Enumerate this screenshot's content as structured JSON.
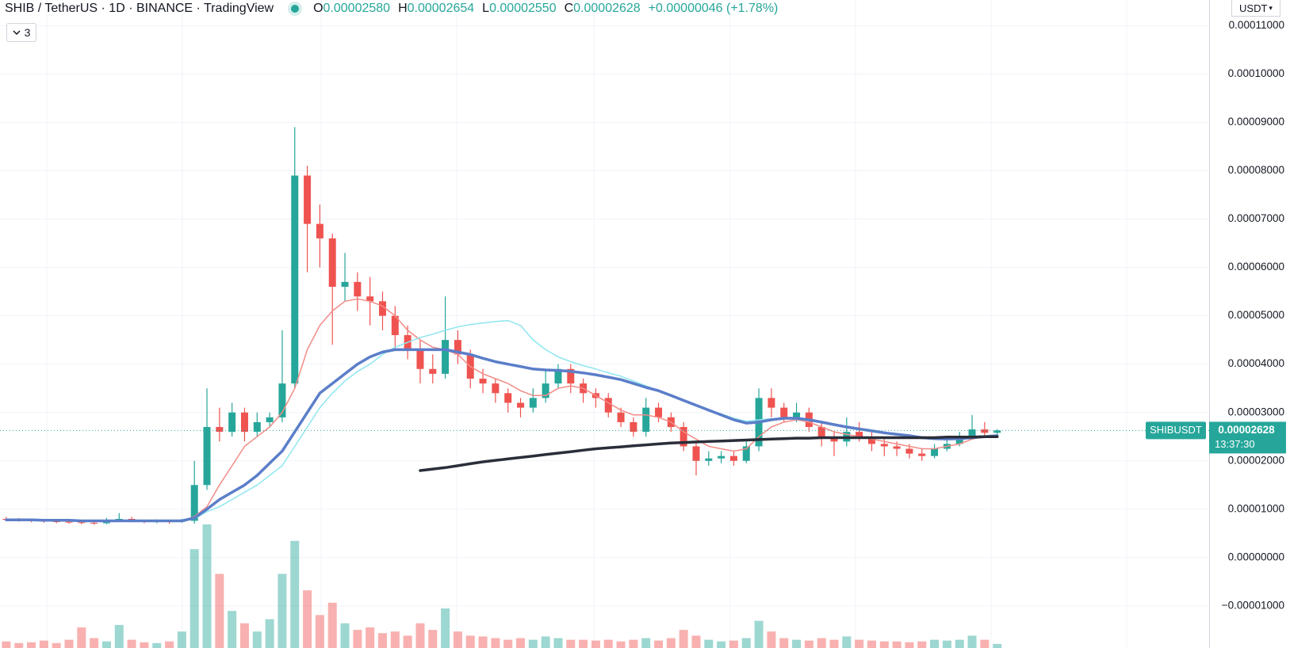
{
  "chart_data": {
    "type": "candlestick",
    "title": "SHIB / TetherUS · 1D · BINANCE · TradingView",
    "legend_values": [
      {
        "label": "O",
        "value": "0.00002580"
      },
      {
        "label": "H",
        "value": "0.00002654"
      },
      {
        "label": "L",
        "value": "0.00002550"
      },
      {
        "label": "C",
        "value": "0.00002628"
      }
    ],
    "change": "+0.00000046 (+1.78%)",
    "indicator_count": "3",
    "currency": "USDT",
    "symbol": "SHIBUSDT",
    "last_price": "0.00002628",
    "countdown": "13:37:30",
    "up_color": "#26a69a",
    "down_color": "#ef5350",
    "grid": true,
    "ylim": [
      -1.87e-05,
      0.0001153
    ],
    "yticks": [
      {
        "value": 0.00011,
        "label": "0.00011000"
      },
      {
        "value": 0.0001,
        "label": "0.00010000"
      },
      {
        "value": 9e-05,
        "label": "0.00009000"
      },
      {
        "value": 8e-05,
        "label": "0.00008000"
      },
      {
        "value": 7e-05,
        "label": "0.00007000"
      },
      {
        "value": 6e-05,
        "label": "0.00006000"
      },
      {
        "value": 5e-05,
        "label": "0.00005000"
      },
      {
        "value": 4e-05,
        "label": "0.00004000"
      },
      {
        "value": 3e-05,
        "label": "0.00003000"
      },
      {
        "value": 2e-05,
        "label": "0.00002000"
      },
      {
        "value": 1e-05,
        "label": "0.00001000"
      },
      {
        "value": 0,
        "label": "0.00000000"
      },
      {
        "value": -1e-05,
        "label": "−0.00001000"
      }
    ],
    "open": [
      8e-06,
      7.8e-06,
      7.7e-06,
      7.6e-06,
      7.5e-06,
      7.4e-06,
      7.3e-06,
      7.2e-06,
      7.1e-06,
      7.6e-06,
      8e-06,
      7.7e-06,
      7.4e-06,
      7.5e-06,
      7.4e-06,
      7.6e-06,
      1.5e-05,
      2.7e-05,
      2.6e-05,
      3e-05,
      2.6e-05,
      2.8e-05,
      2.9e-05,
      3.6e-05,
      7.9e-05,
      6.9e-05,
      6.6e-05,
      5.6e-05,
      5.7e-05,
      5.4e-05,
      5.3e-05,
      5e-05,
      4.6e-05,
      4.3e-05,
      3.9e-05,
      3.8e-05,
      4.5e-05,
      4.2e-05,
      3.7e-05,
      3.6e-05,
      3.4e-05,
      3.2e-05,
      3.1e-05,
      3.3e-05,
      3.6e-05,
      3.9e-05,
      3.6e-05,
      3.4e-05,
      3.3e-05,
      3e-05,
      2.8e-05,
      2.6e-05,
      3.1e-05,
      2.9e-05,
      2.7e-05,
      2.3e-05,
      2e-05,
      2.05e-05,
      2.1e-05,
      2e-05,
      2.3e-05,
      3.3e-05,
      3.1e-05,
      2.9e-05,
      3e-05,
      2.7e-05,
      2.5e-05,
      2.4e-05,
      2.6e-05,
      2.5e-05,
      2.35e-05,
      2.3e-05,
      2.25e-05,
      2.15e-05,
      2.1e-05,
      2.25e-05,
      2.35e-05,
      2.5e-05,
      2.65e-05,
      2.58e-05
    ],
    "high": [
      8.4e-06,
      8.2e-06,
      8.1e-06,
      8e-06,
      7.9e-06,
      7.8e-06,
      7.7e-06,
      7.6e-06,
      8.2e-06,
      9.2e-06,
      8.4e-06,
      7.9e-06,
      7.9e-06,
      7.8e-06,
      8e-06,
      2e-05,
      3.5e-05,
      3.1e-05,
      3.2e-05,
      3.1e-05,
      3e-05,
      3e-05,
      4.7e-05,
      8.9e-05,
      8.1e-05,
      7.3e-05,
      6.7e-05,
      6.3e-05,
      5.9e-05,
      5.8e-05,
      5.5e-05,
      5.2e-05,
      4.8e-05,
      4.5e-05,
      4.2e-05,
      5.4e-05,
      4.7e-05,
      4.3e-05,
      3.9e-05,
      3.7e-05,
      3.5e-05,
      3.3e-05,
      3.5e-05,
      3.9e-05,
      4e-05,
      4e-05,
      3.7e-05,
      3.5e-05,
      3.4e-05,
      3.1e-05,
      2.9e-05,
      3.3e-05,
      3.2e-05,
      3e-05,
      2.8e-05,
      2.4e-05,
      2.2e-05,
      2.2e-05,
      2.2e-05,
      2.4e-05,
      3.5e-05,
      3.5e-05,
      3.2e-05,
      3.2e-05,
      3.1e-05,
      2.8e-05,
      2.6e-05,
      2.9e-05,
      2.8e-05,
      2.6e-05,
      2.45e-05,
      2.4e-05,
      2.35e-05,
      2.25e-05,
      2.35e-05,
      2.5e-05,
      2.6e-05,
      2.95e-05,
      2.8e-05,
      2.654e-05
    ],
    "low": [
      7.5e-06,
      7.4e-06,
      7.3e-06,
      7.2e-06,
      7.1e-06,
      7e-06,
      6.9e-06,
      6.8e-06,
      6.9e-06,
      7.4e-06,
      7.4e-06,
      7.1e-06,
      7.1e-06,
      7e-06,
      7.2e-06,
      7e-06,
      1.4e-05,
      2.4e-05,
      2.5e-05,
      2.4e-05,
      2.5e-05,
      2.7e-05,
      2.8e-05,
      3.5e-05,
      5.9e-05,
      6e-05,
      4.4e-05,
      5.3e-05,
      5.1e-05,
      4.8e-05,
      4.7e-05,
      4.3e-05,
      4.1e-05,
      3.6e-05,
      3.6e-05,
      3.7e-05,
      4e-05,
      3.5e-05,
      3.4e-05,
      3.2e-05,
      3e-05,
      2.9e-05,
      3e-05,
      3.2e-05,
      3.5e-05,
      3.4e-05,
      3.2e-05,
      3.1e-05,
      2.9e-05,
      2.7e-05,
      2.5e-05,
      2.5e-05,
      2.8e-05,
      2.6e-05,
      2.2e-05,
      1.7e-05,
      1.9e-05,
      1.95e-05,
      1.9e-05,
      1.95e-05,
      2.2e-05,
      2.9e-05,
      2.8e-05,
      2.8e-05,
      2.6e-05,
      2.3e-05,
      2.1e-05,
      2.3e-05,
      2.4e-05,
      2.2e-05,
      2.1e-05,
      2.1e-05,
      2.05e-05,
      2e-05,
      2.05e-05,
      2.2e-05,
      2.3e-05,
      2.45e-05,
      2.5e-05,
      2.55e-05
    ],
    "close": [
      7.8e-06,
      7.7e-06,
      7.6e-06,
      7.5e-06,
      7.4e-06,
      7.3e-06,
      7.2e-06,
      7.1e-06,
      7.6e-06,
      8e-06,
      7.7e-06,
      7.4e-06,
      7.5e-06,
      7.4e-06,
      7.6e-06,
      1.5e-05,
      2.7e-05,
      2.6e-05,
      3e-05,
      2.6e-05,
      2.8e-05,
      2.9e-05,
      3.6e-05,
      7.9e-05,
      6.9e-05,
      6.6e-05,
      5.6e-05,
      5.7e-05,
      5.4e-05,
      5.3e-05,
      5e-05,
      4.6e-05,
      4.3e-05,
      3.9e-05,
      3.8e-05,
      4.5e-05,
      4.2e-05,
      3.7e-05,
      3.6e-05,
      3.4e-05,
      3.2e-05,
      3.1e-05,
      3.3e-05,
      3.6e-05,
      3.9e-05,
      3.6e-05,
      3.4e-05,
      3.3e-05,
      3e-05,
      2.8e-05,
      2.6e-05,
      3.1e-05,
      2.9e-05,
      2.7e-05,
      2.3e-05,
      2e-05,
      2.05e-05,
      2.1e-05,
      2e-05,
      2.3e-05,
      3.3e-05,
      3.1e-05,
      2.9e-05,
      3e-05,
      2.7e-05,
      2.5e-05,
      2.4e-05,
      2.6e-05,
      2.5e-05,
      2.35e-05,
      2.3e-05,
      2.25e-05,
      2.15e-05,
      2.1e-05,
      2.25e-05,
      2.35e-05,
      2.5e-05,
      2.65e-05,
      2.58e-05,
      2.628e-05
    ],
    "volume": [
      8,
      6,
      7,
      9,
      6,
      10,
      25,
      12,
      8,
      28,
      10,
      7,
      6,
      8,
      20,
      120,
      150,
      90,
      45,
      30,
      20,
      35,
      90,
      130,
      70,
      40,
      55,
      30,
      22,
      25,
      18,
      20,
      15,
      30,
      22,
      48,
      20,
      15,
      14,
      12,
      10,
      12,
      10,
      14,
      12,
      10,
      10,
      9,
      10,
      8,
      10,
      12,
      9,
      12,
      22,
      15,
      10,
      8,
      9,
      12,
      33,
      20,
      12,
      10,
      9,
      12,
      10,
      14,
      10,
      9,
      8,
      8,
      7,
      8,
      10,
      9,
      10,
      15,
      10,
      5
    ],
    "series": [
      {
        "color": "#f28b86",
        "line_width": 1.5,
        "values": [
          7.8e-06,
          7.8e-06,
          7.7e-06,
          7.7e-06,
          7.6e-06,
          7.6e-06,
          7.5e-06,
          7.5e-06,
          7.5e-06,
          7.6e-06,
          7.6e-06,
          7.6e-06,
          7.5e-06,
          7.5e-06,
          7.5e-06,
          8.5e-06,
          1.05e-05,
          1.5e-05,
          1.9e-05,
          2.3e-05,
          2.5e-05,
          2.7e-05,
          3e-05,
          3.5e-05,
          4.3e-05,
          4.8e-05,
          5.1e-05,
          5.3e-05,
          5.35e-05,
          5.3e-05,
          5.2e-05,
          5e-05,
          4.7e-05,
          4.5e-05,
          4.35e-05,
          4.3e-05,
          4.2e-05,
          3.95e-05,
          3.8e-05,
          3.7e-05,
          3.6e-05,
          3.45e-05,
          3.35e-05,
          3.35e-05,
          3.5e-05,
          3.55e-05,
          3.5e-05,
          3.35e-05,
          3.2e-05,
          3.05e-05,
          2.95e-05,
          2.95e-05,
          2.9e-05,
          2.8e-05,
          2.6e-05,
          2.45e-05,
          2.3e-05,
          2.25e-05,
          2.2e-05,
          2.25e-05,
          2.5e-05,
          2.7e-05,
          2.8e-05,
          2.85e-05,
          2.8e-05,
          2.7e-05,
          2.6e-05,
          2.55e-05,
          2.5e-05,
          2.45e-05,
          2.4e-05,
          2.35e-05,
          2.3e-05,
          2.25e-05,
          2.25e-05,
          2.3e-05,
          2.35e-05,
          2.45e-05,
          2.5e-05,
          2.52e-05
        ]
      },
      {
        "color": "#8ee6f0",
        "line_width": 1.5,
        "values": [
          null,
          null,
          null,
          null,
          null,
          null,
          null,
          null,
          null,
          null,
          null,
          null,
          null,
          null,
          null,
          8e-06,
          9.5e-06,
          1.05e-05,
          1.2e-05,
          1.35e-05,
          1.5e-05,
          1.7e-05,
          1.9e-05,
          2.3e-05,
          2.7e-05,
          3.1e-05,
          3.4e-05,
          3.65e-05,
          3.85e-05,
          4e-05,
          4.2e-05,
          4.35e-05,
          4.45e-05,
          4.55e-05,
          4.62e-05,
          4.7e-05,
          4.77e-05,
          4.82e-05,
          4.85e-05,
          4.88e-05,
          4.9e-05,
          4.8e-05,
          4.5e-05,
          4.3e-05,
          4.15e-05,
          4.05e-05,
          3.97e-05,
          3.9e-05,
          3.82e-05,
          3.75e-05,
          3.65e-05,
          3.55e-05,
          3.45e-05,
          3.35e-05,
          3.25e-05,
          3.15e-05,
          3.05e-05,
          2.97e-05,
          2.88e-05,
          2.82e-05,
          2.85e-05,
          2.87e-05,
          2.87e-05,
          2.86e-05,
          2.83e-05,
          2.8e-05,
          2.75e-05,
          2.7e-05,
          2.66e-05,
          2.62e-05,
          2.58e-05,
          2.55e-05,
          2.52e-05,
          2.5e-05,
          2.48e-05,
          2.48e-05,
          2.49e-05,
          2.5e-05,
          2.51e-05,
          2.52e-05
        ]
      },
      {
        "color": "#5b7ec9",
        "line_width": 3.5,
        "values": [
          7.8e-06,
          7.8e-06,
          7.8e-06,
          7.7e-06,
          7.7e-06,
          7.7e-06,
          7.6e-06,
          7.6e-06,
          7.6e-06,
          7.6e-06,
          7.6e-06,
          7.6e-06,
          7.6e-06,
          7.6e-06,
          7.6e-06,
          8.2e-06,
          1e-05,
          1.2e-05,
          1.35e-05,
          1.5e-05,
          1.7e-05,
          1.95e-05,
          2.2e-05,
          2.6e-05,
          3e-05,
          3.4e-05,
          3.6e-05,
          3.8e-05,
          4e-05,
          4.15e-05,
          4.25e-05,
          4.3e-05,
          4.3e-05,
          4.3e-05,
          4.3e-05,
          4.3e-05,
          4.25e-05,
          4.2e-05,
          4.12e-05,
          4.05e-05,
          4e-05,
          3.95e-05,
          3.9e-05,
          3.88e-05,
          3.87e-05,
          3.85e-05,
          3.82e-05,
          3.78e-05,
          3.73e-05,
          3.68e-05,
          3.6e-05,
          3.52e-05,
          3.45e-05,
          3.35e-05,
          3.25e-05,
          3.15e-05,
          3.05e-05,
          2.95e-05,
          2.85e-05,
          2.78e-05,
          2.8e-05,
          2.85e-05,
          2.88e-05,
          2.88e-05,
          2.85e-05,
          2.8e-05,
          2.75e-05,
          2.7e-05,
          2.66e-05,
          2.62e-05,
          2.58e-05,
          2.55e-05,
          2.52e-05,
          2.48e-05,
          2.46e-05,
          2.45e-05,
          2.46e-05,
          2.48e-05,
          2.5e-05,
          2.52e-05
        ]
      },
      {
        "color": "#2a2e39",
        "line_width": 3.5,
        "values": [
          null,
          null,
          null,
          null,
          null,
          null,
          null,
          null,
          null,
          null,
          null,
          null,
          null,
          null,
          null,
          null,
          null,
          null,
          null,
          null,
          null,
          null,
          null,
          null,
          null,
          null,
          null,
          null,
          null,
          null,
          null,
          null,
          null,
          1.8e-05,
          1.83e-05,
          1.86e-05,
          1.9e-05,
          1.94e-05,
          1.98e-05,
          2.01e-05,
          2.04e-05,
          2.07e-05,
          2.1e-05,
          2.13e-05,
          2.16e-05,
          2.19e-05,
          2.22e-05,
          2.25e-05,
          2.27e-05,
          2.29e-05,
          2.31e-05,
          2.33e-05,
          2.35e-05,
          2.37e-05,
          2.38e-05,
          2.39e-05,
          2.4e-05,
          2.41e-05,
          2.42e-05,
          2.43e-05,
          2.44e-05,
          2.45e-05,
          2.46e-05,
          2.47e-05,
          2.47e-05,
          2.48e-05,
          2.48e-05,
          2.48e-05,
          2.48e-05,
          2.48e-05,
          2.48e-05,
          2.48e-05,
          2.48e-05,
          2.48e-05,
          2.48e-05,
          2.49e-05,
          2.49e-05,
          2.49e-05,
          2.5e-05,
          2.5e-05
        ]
      }
    ]
  }
}
